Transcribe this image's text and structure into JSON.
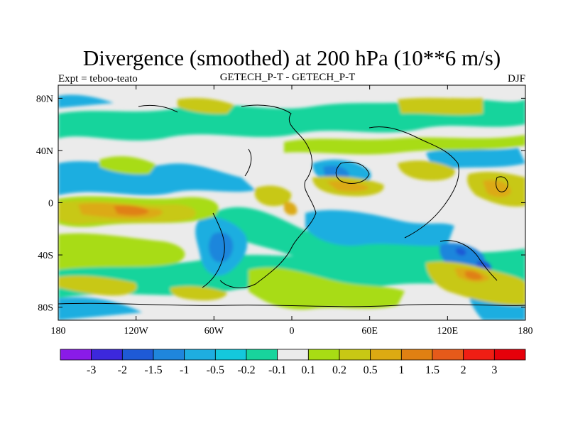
{
  "chart_data": {
    "type": "heatmap",
    "title": "Divergence (smoothed) at 200 hPa (10**6 m/s)",
    "subtitle_center": "GETECH_P-T - GETECH_P-T",
    "subtitle_left": "Expt = teboo-teato",
    "subtitle_right": "DJF",
    "x_ticks": [
      {
        "value": -180,
        "label": "180"
      },
      {
        "value": -120,
        "label": "120W"
      },
      {
        "value": -60,
        "label": "60W"
      },
      {
        "value": 0,
        "label": "0"
      },
      {
        "value": 60,
        "label": "60E"
      },
      {
        "value": 120,
        "label": "120E"
      },
      {
        "value": 180,
        "label": "180"
      }
    ],
    "y_ticks": [
      {
        "value": 80,
        "label": "80N"
      },
      {
        "value": 40,
        "label": "40N"
      },
      {
        "value": 0,
        "label": "0"
      },
      {
        "value": -40,
        "label": "40S"
      },
      {
        "value": -80,
        "label": "80S"
      }
    ],
    "xlim": [
      -180,
      180
    ],
    "ylim": [
      -90,
      90
    ],
    "colorbar": {
      "levels": [
        "-3",
        "-2",
        "-1.5",
        "-1",
        "-0.5",
        "-0.2",
        "-0.1",
        "0.1",
        "0.2",
        "0.5",
        "1",
        "1.5",
        "2",
        "3"
      ],
      "colors": [
        "#8a1be8",
        "#3c28dc",
        "#1e5ad6",
        "#1f86dc",
        "#1eaee0",
        "#14c8dc",
        "#18d49c",
        "#ebebeb",
        "#a8dc14",
        "#c8c814",
        "#dcaa12",
        "#e08012",
        "#e65a1a",
        "#f01e14",
        "#e6000a"
      ]
    }
  }
}
